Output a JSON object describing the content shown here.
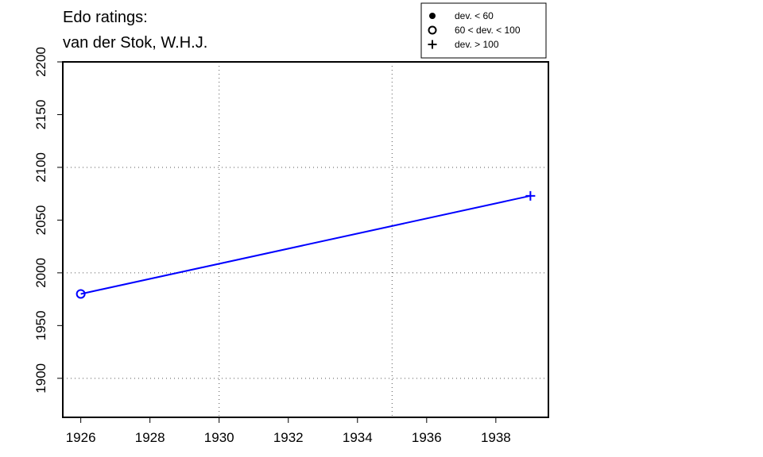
{
  "chart_data": {
    "type": "line",
    "title": [
      "Edo ratings:",
      "van der Stok, W.H.J."
    ],
    "x": [
      1926,
      1939
    ],
    "series": [
      {
        "color": "#0000ff",
        "values": [
          1980,
          2073
        ],
        "markers": [
          "circle-open",
          "plus"
        ]
      }
    ],
    "xlim": [
      1925.48,
      1939.52
    ],
    "ylim": [
      1863,
      2200
    ],
    "xticks": [
      1926,
      1928,
      1930,
      1932,
      1934,
      1936,
      1938
    ],
    "yticks": [
      1900,
      1950,
      2000,
      2050,
      2100,
      2150,
      2200
    ],
    "xgrid": [
      1930,
      1935
    ],
    "ygrid": [
      1900,
      2000,
      2100
    ],
    "legend": {
      "position": "top-right",
      "entries": [
        {
          "label": "dev. < 60",
          "symbol": "circle-filled"
        },
        {
          "label": "60 < dev. < 100",
          "symbol": "circle-open"
        },
        {
          "label": "dev. > 100",
          "symbol": "plus"
        }
      ]
    }
  }
}
